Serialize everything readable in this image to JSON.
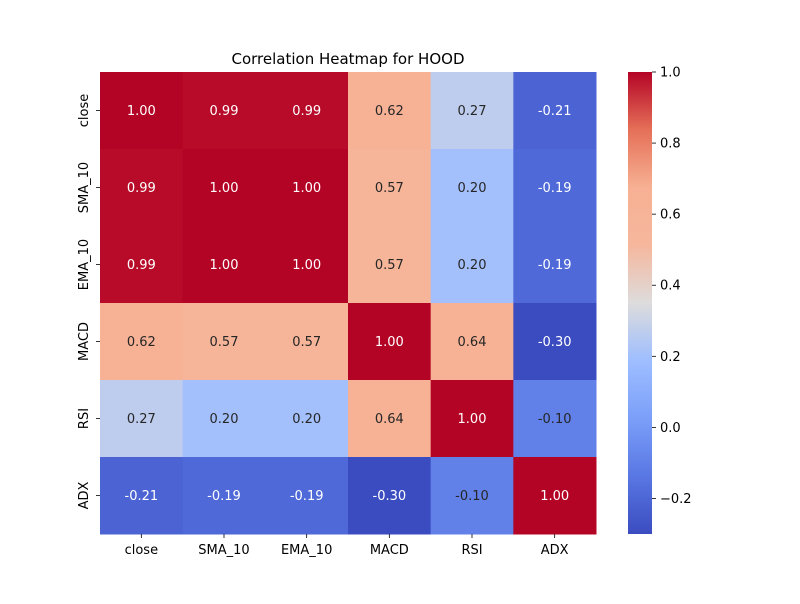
{
  "chart_data": {
    "type": "heatmap",
    "title": "Correlation Heatmap for HOOD",
    "xlabel": "",
    "ylabel": "",
    "x_categories": [
      "close",
      "SMA_10",
      "EMA_10",
      "MACD",
      "RSI",
      "ADX"
    ],
    "y_categories": [
      "close",
      "SMA_10",
      "EMA_10",
      "MACD",
      "RSI",
      "ADX"
    ],
    "values": [
      [
        1.0,
        0.99,
        0.99,
        0.62,
        0.27,
        -0.21
      ],
      [
        0.99,
        1.0,
        1.0,
        0.57,
        0.2,
        -0.19
      ],
      [
        0.99,
        1.0,
        1.0,
        0.57,
        0.2,
        -0.19
      ],
      [
        0.62,
        0.57,
        0.57,
        1.0,
        0.64,
        -0.3
      ],
      [
        0.27,
        0.2,
        0.2,
        0.64,
        1.0,
        -0.1
      ],
      [
        -0.21,
        -0.19,
        -0.19,
        -0.3,
        -0.1,
        1.0
      ]
    ],
    "colormap": "coolwarm",
    "value_range": [
      -0.3,
      1.0
    ],
    "colorbar": {
      "ticks": [
        -0.2,
        0.0,
        0.2,
        0.4,
        0.6,
        0.8,
        1.0
      ],
      "tick_labels": [
        "−0.2",
        "0.0",
        "0.2",
        "0.4",
        "0.6",
        "0.8",
        "1.0"
      ],
      "placement": "right"
    },
    "annotations": true,
    "annotation_format": "2f",
    "grid": false
  }
}
